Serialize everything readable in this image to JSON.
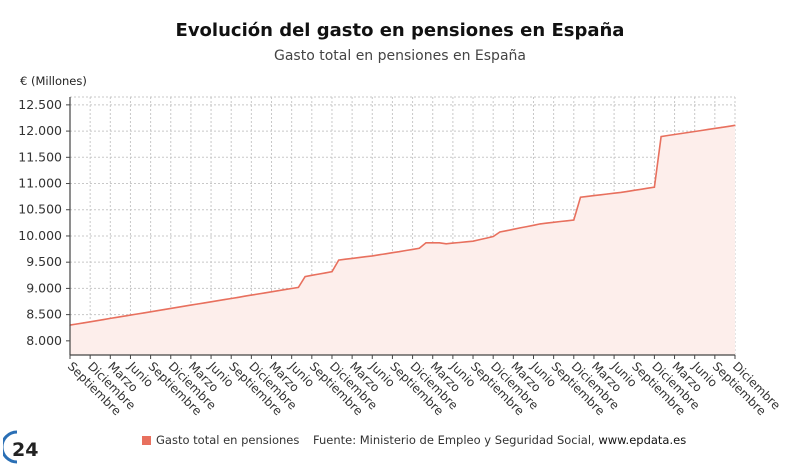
{
  "chart_data": {
    "type": "area",
    "title": "Evolución del gasto en pensiones en España",
    "subtitle": "Gasto total en pensiones en España",
    "ylabel": "€ (Millones)",
    "xlabel": "",
    "ylim": [
      7730,
      12650
    ],
    "yticks": [
      8000,
      8500,
      9000,
      9500,
      10000,
      10500,
      11000,
      11500,
      12000,
      12500
    ],
    "ytick_labels": [
      "8.000",
      "8.500",
      "9.000",
      "9.500",
      "10.000",
      "10.500",
      "11.000",
      "11.500",
      "12.000",
      "12.500"
    ],
    "x_tick_labels": [
      "Septiembre",
      "Diciembre",
      "Marzo",
      "Junio",
      "Septiembre",
      "Diciembre",
      "Marzo",
      "Junio",
      "Septiembre",
      "Diciembre",
      "Marzo",
      "Junio",
      "Septiembre",
      "Diciembre",
      "Marzo",
      "Junio",
      "Septiembre",
      "Diciembre",
      "Marzo",
      "Junio",
      "Septiembre",
      "Diciembre",
      "Marzo",
      "Junio",
      "Septiembre",
      "Diciembre",
      "Marzo",
      "Junio",
      "Septiembre",
      "Diciembre",
      "Marzo",
      "Junio",
      "Septiembre",
      "Diciembre"
    ],
    "x_frequency": "monthly, ticks every 3 months",
    "grid": true,
    "legend_position": "bottom",
    "series": [
      {
        "name": "Gasto total en pensiones",
        "color": "#e8705e",
        "fill": "#fdeeeb",
        "values": [
          8300,
          8321,
          8342,
          8364,
          8385,
          8406,
          8427,
          8448,
          8469,
          8491,
          8512,
          8533,
          8554,
          8575,
          8596,
          8618,
          8639,
          8660,
          8681,
          8702,
          8724,
          8745,
          8766,
          8787,
          8808,
          8829,
          8851,
          8872,
          8893,
          8914,
          8935,
          8956,
          8978,
          8999,
          9020,
          9225,
          9249,
          9273,
          9296,
          9320,
          9540,
          9556,
          9572,
          9588,
          9604,
          9620,
          9640,
          9660,
          9680,
          9700,
          9722,
          9743,
          9765,
          9870,
          9870,
          9870,
          9850,
          9863,
          9875,
          9888,
          9900,
          9930,
          9960,
          9990,
          10075,
          10101,
          10127,
          10153,
          10178,
          10204,
          10230,
          10245,
          10260,
          10275,
          10290,
          10305,
          10740,
          10755,
          10770,
          10785,
          10800,
          10815,
          10830,
          10850,
          10870,
          10890,
          10910,
          10930,
          11895,
          11915,
          11934,
          11954,
          11973,
          11993,
          12012,
          12032,
          12051,
          12071,
          12090,
          12110
        ]
      }
    ],
    "legend": [
      "Gasto total en pensiones"
    ]
  },
  "footer": {
    "source_prefix": "Fuente: Ministerio de Empleo y Seguridad Social, ",
    "source_site": "www.epdata.es",
    "logo_text": "24"
  }
}
